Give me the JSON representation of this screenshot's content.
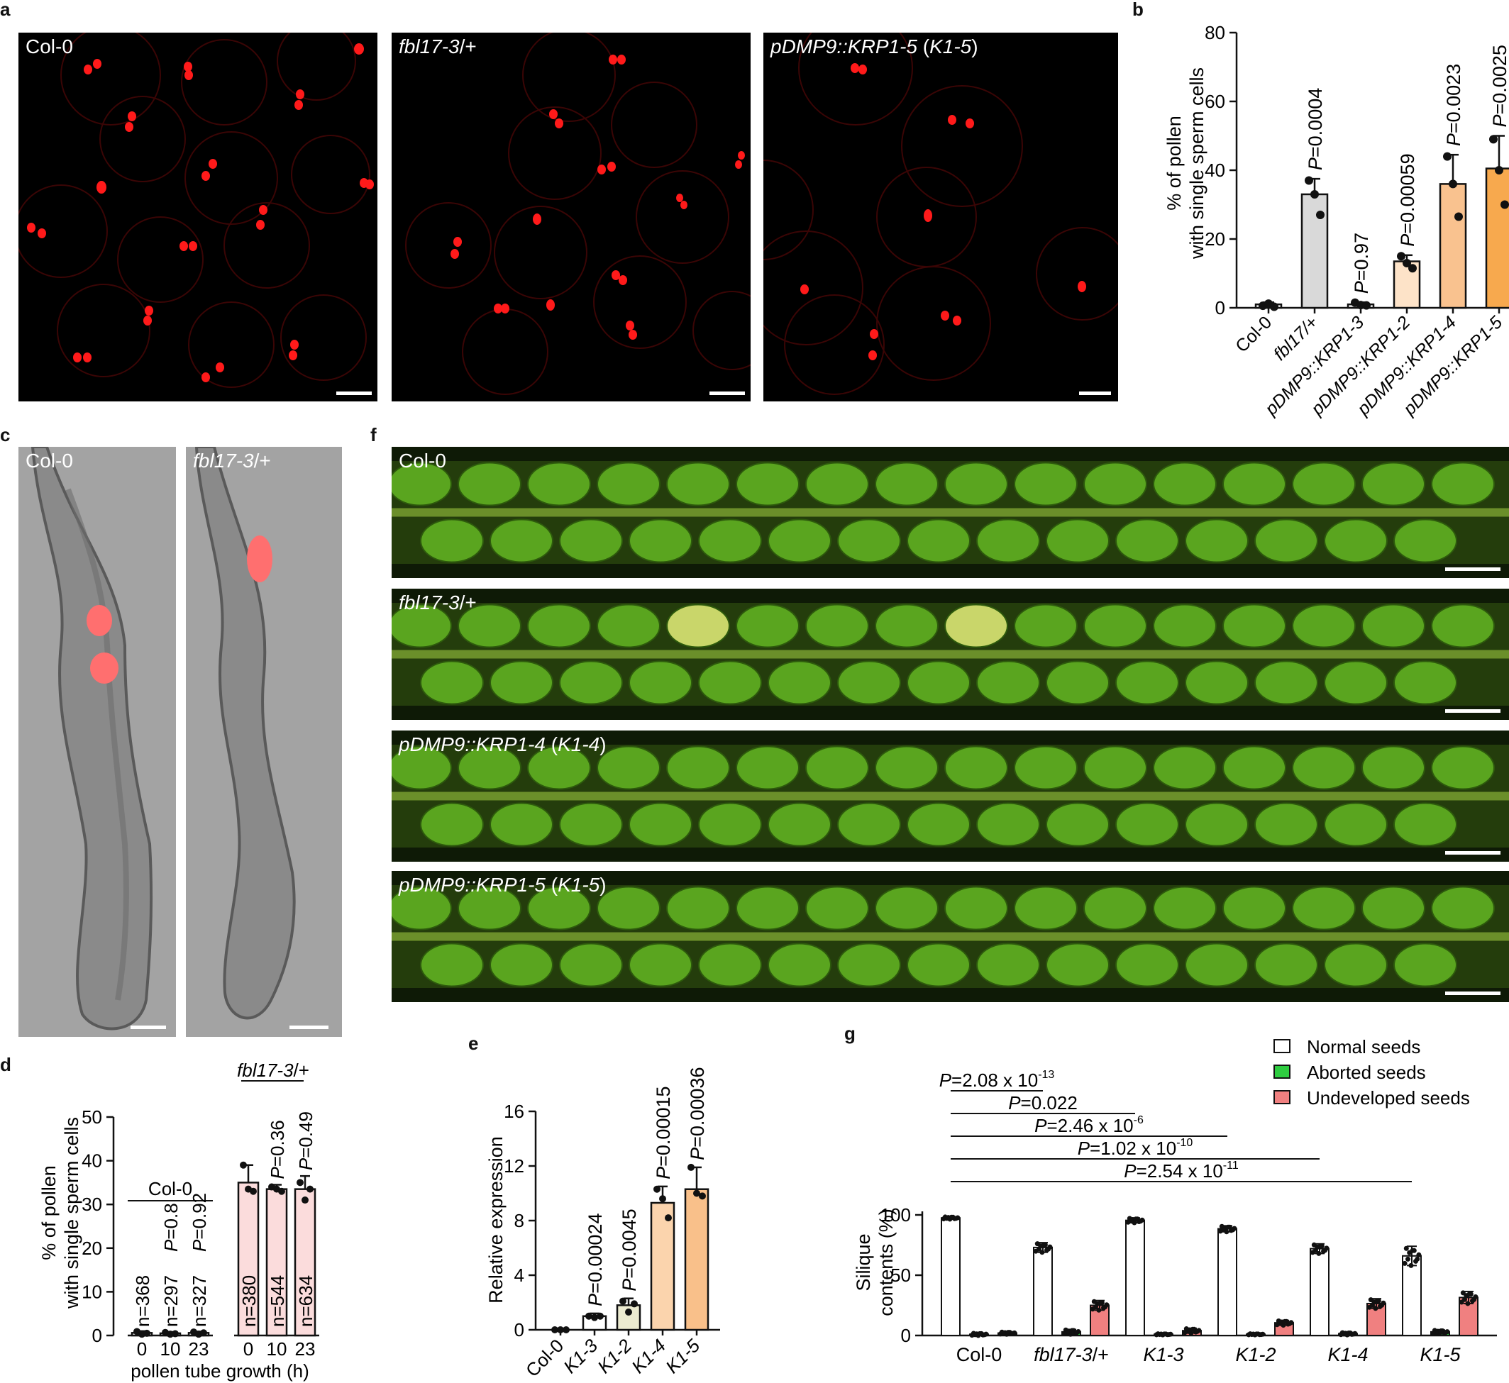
{
  "panels": {
    "a": {
      "label": "a",
      "images": [
        {
          "label": "Col-0",
          "scale_bar": true
        },
        {
          "label_italic": "fbl17-3",
          "label_rest": "/+",
          "scale_bar": true
        },
        {
          "label_italic": "pDMP9::KRP1-5",
          "label_rest": " (",
          "label_italic2": "K1-5",
          "label_end": ")",
          "scale_bar": true
        }
      ]
    },
    "b": {
      "label": "b",
      "chart_data": {
        "type": "bar",
        "ylabel": "% of pollen with single sperm cells",
        "ylabel_line1": "% of pollen",
        "ylabel_line2": "with single sperm cells",
        "ylim": [
          0,
          80
        ],
        "yticks": [
          "0",
          "20",
          "40",
          "60",
          "80"
        ],
        "categories": [
          "Col-0",
          "fbl17/+",
          "pDMP9::KRP1-3",
          "pDMP9::KRP1-2",
          "pDMP9::KRP1-4",
          "pDMP9::KRP1-5"
        ],
        "values": [
          1,
          33,
          1,
          13.5,
          36,
          40.5
        ],
        "errors": [
          0.6,
          4.5,
          0.6,
          1.8,
          8.5,
          9.5
        ],
        "points": [
          [
            0.6,
            1.2,
            0.3
          ],
          [
            37,
            33,
            27
          ],
          [
            1.5,
            0.8,
            0.7
          ],
          [
            15,
            13,
            11.5
          ],
          [
            44,
            36,
            26.5
          ],
          [
            49,
            40,
            30
          ]
        ],
        "pvalues": [
          "",
          "P=0.0004",
          "P=0.97",
          "P=0.00059",
          "P=0.0023",
          "P=0.0025"
        ],
        "colors": [
          "#ffffff",
          "#d9d9d9",
          "#ffffff",
          "#fde3c8",
          "#f9c28f",
          "#f7a94e"
        ]
      }
    },
    "c": {
      "label": "c",
      "images": [
        {
          "label": "Col-0"
        },
        {
          "label_italic": "fbl17-3",
          "label_rest": "/+"
        }
      ]
    },
    "d": {
      "label": "d",
      "chart_data": {
        "type": "bar",
        "ylabel_line1": "% of pollen",
        "ylabel_line2": "with single sperm cells",
        "xlabel": "pollen tube growth (h)",
        "ylim": [
          0,
          50
        ],
        "yticks": [
          "0",
          "10",
          "20",
          "30",
          "40",
          "50"
        ],
        "groups": [
          {
            "name": "Col-0",
            "categories": [
              "0",
              "10",
              "23"
            ],
            "values": [
              0.6,
              0.5,
              0.6
            ],
            "ns": [
              "n=368",
              "n=297",
              "n=327"
            ],
            "pvalues": [
              "",
              "P=0.8",
              "P=0.92"
            ],
            "color": "#ffffff",
            "points": [
              [
                0.9,
                0.3,
                0.5
              ],
              [
                0.7,
                0.3,
                0.4
              ],
              [
                0.8,
                0.3,
                0.6
              ]
            ],
            "errors": [
              0.4,
              0.3,
              0.3
            ]
          },
          {
            "name": "fbl17-3/+",
            "name_italic": "fbl17-3",
            "name_rest": "/+",
            "categories": [
              "0",
              "10",
              "23"
            ],
            "values": [
              35,
              33.5,
              33.5
            ],
            "ns": [
              "n=380",
              "n=544",
              "n=634"
            ],
            "pvalues": [
              "",
              "P=0.36",
              "P=0.49"
            ],
            "color": "#fbdcdc",
            "points": [
              [
                39,
                33.5,
                33
              ],
              [
                34,
                33.5,
                33
              ],
              [
                35,
                31,
                33.5
              ]
            ],
            "errors": [
              4,
              1,
              3
            ]
          }
        ]
      }
    },
    "e": {
      "label": "e",
      "chart_data": {
        "type": "bar",
        "ylabel": "Relative expression",
        "ylim": [
          0,
          16
        ],
        "yticks": [
          "0",
          "4",
          "8",
          "12",
          "16"
        ],
        "categories": [
          "Col-0",
          "K1-3",
          "K1-2",
          "K1-4",
          "K1-5"
        ],
        "values": [
          0,
          1,
          1.8,
          9.3,
          10.3
        ],
        "errors": [
          0.1,
          0.2,
          0.5,
          1.2,
          1.6
        ],
        "points": [
          [
            0,
            0,
            0
          ],
          [
            1.0,
            0.9,
            1.0
          ],
          [
            2.1,
            1.3,
            1.9
          ],
          [
            10.3,
            9.6,
            8.2
          ],
          [
            11.9,
            10.0,
            9.8
          ]
        ],
        "pvalues": [
          "",
          "P=0.00024",
          "P=0.0045",
          "P=0.00015",
          "P=0.00036"
        ],
        "colors": [
          "#ffffff",
          "#ffffff",
          "#ecebd0",
          "#fbd4ad",
          "#f9c08a"
        ]
      }
    },
    "f": {
      "label": "f",
      "images": [
        {
          "label": "Col-0"
        },
        {
          "label_italic": "fbl17-3",
          "label_rest": "/+"
        },
        {
          "label_italic": "pDMP9::KRP1-4",
          "label_rest": " (",
          "label_italic2": "K1-4",
          "label_end": ")"
        },
        {
          "label_italic": "pDMP9::KRP1-5",
          "label_rest": " (",
          "label_italic2": "K1-5",
          "label_end": ")"
        }
      ]
    },
    "g": {
      "label": "g",
      "chart_data": {
        "type": "bar",
        "ylabel_line1": "Silique",
        "ylabel_line2": "contents (%)",
        "ylim": [
          0,
          100
        ],
        "yticks": [
          "0",
          "50",
          "100"
        ],
        "categories": [
          "Col-0",
          "fbl17-3/+",
          "K1-3",
          "K1-2",
          "K1-4",
          "K1-5"
        ],
        "series": [
          {
            "name": "Normal seeds",
            "color": "#ffffff",
            "values": [
              97.5,
              73,
              95.5,
              88.5,
              72,
              66
            ],
            "errors": [
              1,
              4,
              2,
              2.5,
              4,
              8
            ]
          },
          {
            "name": "Aborted seeds",
            "color": "#2ecc40",
            "values": [
              1,
              3,
              1,
              1,
              1.5,
              3
            ],
            "errors": [
              1,
              2,
              0.5,
              0.5,
              1,
              1.5
            ]
          },
          {
            "name": "Undeveloped seeds",
            "color": "#f08080",
            "values": [
              2,
              25,
              4,
              10.5,
              26.5,
              31.5
            ],
            "errors": [
              1,
              4,
              2,
              2,
              4,
              5
            ]
          }
        ],
        "comparisons": [
          {
            "p_base": "=2.08 x 10",
            "p_exp": "-13",
            "to": 1
          },
          {
            "p_base": "=0.022",
            "p_exp": "",
            "to": 2
          },
          {
            "p_base": "=2.46 x 10",
            "p_exp": "-6",
            "to": 3
          },
          {
            "p_base": "=1.02 x 10",
            "p_exp": "-10",
            "to": 4
          },
          {
            "p_base": "=2.54 x 10",
            "p_exp": "-11",
            "to": 5
          }
        ],
        "legend_placement": "top-right"
      }
    }
  }
}
